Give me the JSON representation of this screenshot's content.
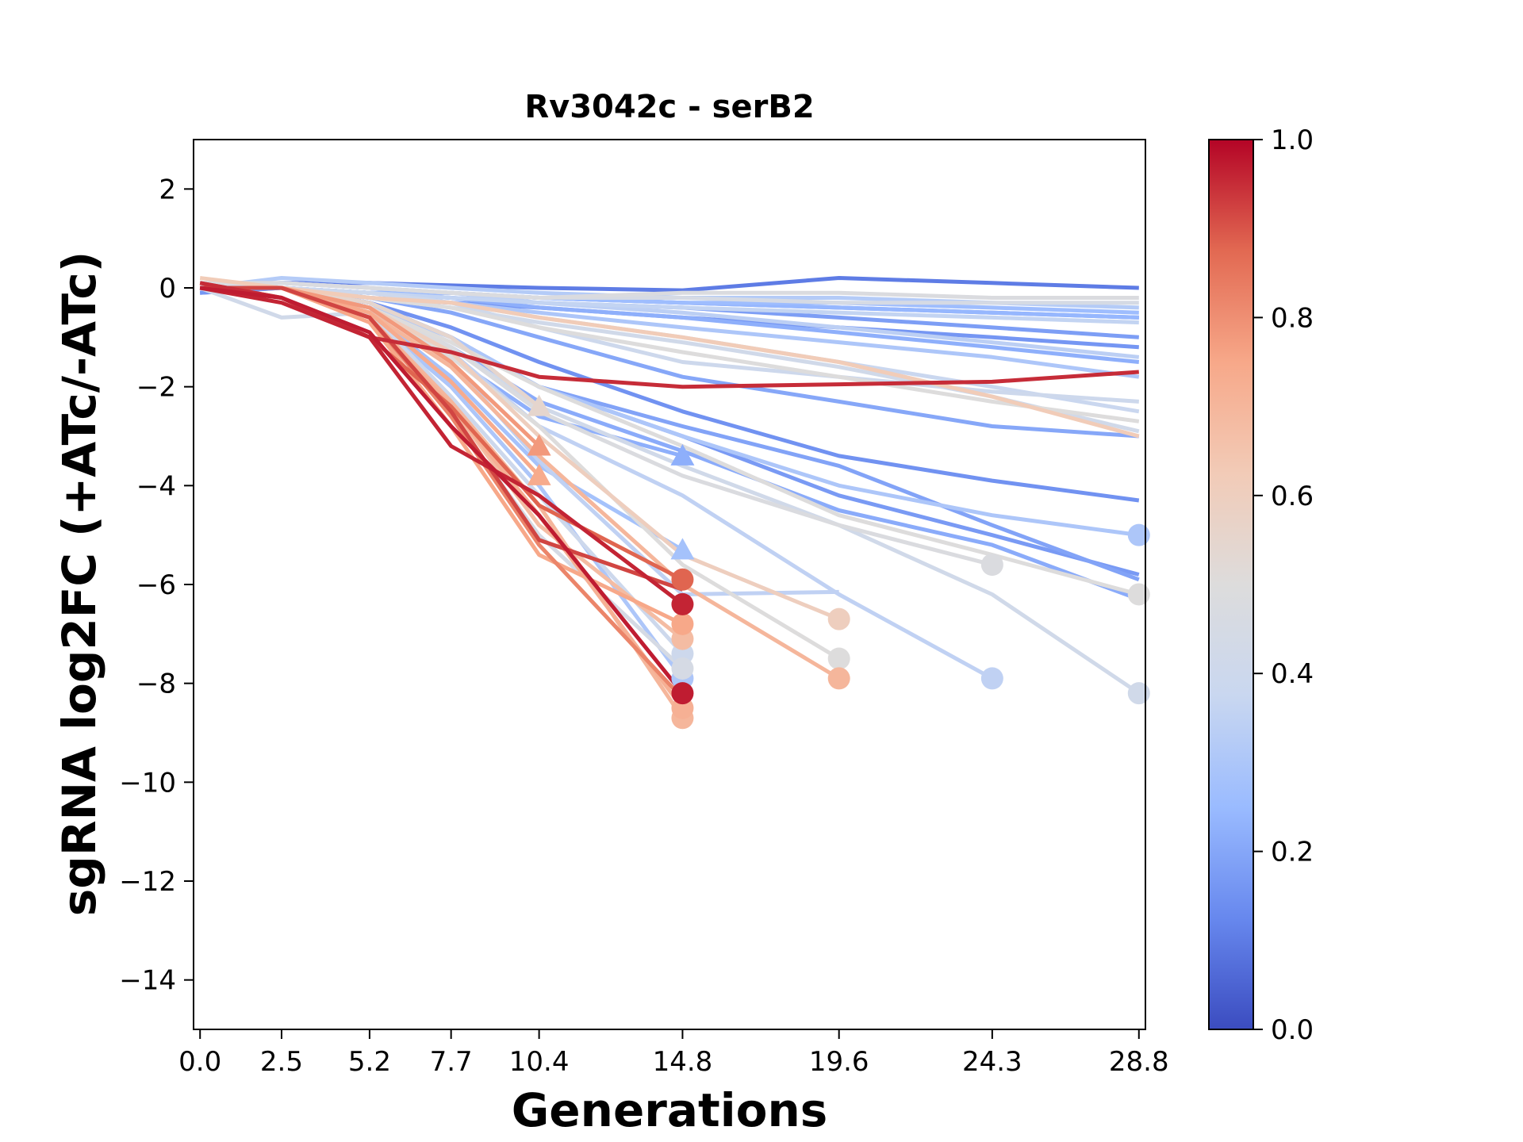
{
  "chart_data": {
    "type": "line",
    "title": "Rv3042c - serB2",
    "xlabel": "Generations",
    "ylabel": "sgRNA log2FC (+ATc/-ATc)",
    "x_ticks": [
      0.0,
      2.5,
      5.2,
      7.7,
      10.4,
      14.8,
      19.6,
      24.3,
      28.8
    ],
    "x_tick_labels": [
      "0.0",
      "2.5",
      "5.2",
      "7.7",
      "10.4",
      "14.8",
      "19.6",
      "24.3",
      "28.8"
    ],
    "y_ticks": [
      2,
      0,
      -2,
      -4,
      -6,
      -8,
      -10,
      -12,
      -14
    ],
    "y_tick_labels": [
      "2",
      "0",
      "−2",
      "−4",
      "−6",
      "−8",
      "−10",
      "−12",
      "−14"
    ],
    "xlim": [
      -0.2,
      29.0
    ],
    "ylim": [
      -15,
      3
    ],
    "grid": false,
    "colorbar": {
      "range": [
        0.0,
        1.0
      ],
      "ticks": [
        0.0,
        0.2,
        0.4,
        0.6,
        0.8,
        1.0
      ],
      "tick_labels": [
        "0.0",
        "0.2",
        "0.4",
        "0.6",
        "0.8",
        "1.0"
      ],
      "colormap": "coolwarm",
      "stops": [
        "#3b4cc0",
        "#6788ee",
        "#9abbff",
        "#c9d7f0",
        "#dddcdc",
        "#f2cbb7",
        "#f7a889",
        "#e26952",
        "#b40426"
      ]
    },
    "series": [
      {
        "x": [
          0.0,
          2.5,
          5.2,
          7.7,
          10.4,
          14.8,
          19.6,
          24.3,
          28.8
        ],
        "y": [
          0.0,
          0.1,
          0.1,
          0.05,
          0.0,
          -0.05,
          0.2,
          0.1,
          0.0
        ],
        "c": 0.1,
        "end": "none"
      },
      {
        "x": [
          0.0,
          2.5,
          5.2,
          7.7,
          10.4,
          14.8,
          19.6,
          24.3,
          28.8
        ],
        "y": [
          -0.1,
          0.0,
          -0.1,
          -0.1,
          -0.2,
          -0.3,
          -0.4,
          -0.5,
          -0.6
        ],
        "c": 0.14,
        "end": "none"
      },
      {
        "x": [
          0.0,
          2.5,
          5.2,
          7.7,
          10.4,
          14.8,
          19.6,
          24.3,
          28.8
        ],
        "y": [
          0.0,
          0.0,
          -0.1,
          -0.2,
          -0.3,
          -0.4,
          -0.6,
          -0.8,
          -1.0
        ],
        "c": 0.18,
        "end": "none"
      },
      {
        "x": [
          0.0,
          2.5,
          5.2,
          7.7,
          10.4,
          14.8,
          19.6,
          24.3,
          28.8
        ],
        "y": [
          -0.1,
          0.0,
          -0.2,
          -0.3,
          -0.4,
          -0.6,
          -0.8,
          -1.0,
          -1.2
        ],
        "c": 0.16,
        "end": "none"
      },
      {
        "x": [
          0.0,
          2.5,
          5.2,
          7.7,
          10.4,
          14.8,
          19.6,
          24.3,
          28.8
        ],
        "y": [
          0.0,
          0.1,
          0.0,
          -0.1,
          -0.2,
          -0.3,
          -0.3,
          -0.4,
          -0.5
        ],
        "c": 0.26,
        "end": "none"
      },
      {
        "x": [
          0.0,
          2.5,
          5.2,
          7.7,
          10.4,
          14.8,
          19.6,
          24.3,
          28.8
        ],
        "y": [
          0.0,
          0.2,
          0.1,
          0.0,
          -0.1,
          -0.2,
          -0.2,
          -0.3,
          -0.4
        ],
        "c": 0.32,
        "end": "none"
      },
      {
        "x": [
          0.0,
          2.5,
          5.2,
          7.7,
          10.4,
          14.8,
          19.6,
          24.3,
          28.8
        ],
        "y": [
          0.0,
          0.0,
          -0.1,
          -0.2,
          -0.4,
          -0.6,
          -0.9,
          -1.2,
          -1.5
        ],
        "c": 0.22,
        "end": "none"
      },
      {
        "x": [
          0.0,
          2.5,
          5.2,
          7.7,
          10.4,
          14.8,
          19.6,
          24.3,
          28.8
        ],
        "y": [
          0.0,
          0.0,
          -0.1,
          -0.2,
          -0.3,
          -0.4,
          -0.5,
          -0.6,
          -0.7
        ],
        "c": 0.36,
        "end": "none"
      },
      {
        "x": [
          0.0,
          2.5,
          5.2,
          7.7,
          10.4,
          14.8,
          19.6,
          24.3,
          28.8
        ],
        "y": [
          0.1,
          0.0,
          -0.1,
          -0.3,
          -0.5,
          -0.8,
          -1.1,
          -1.4,
          -1.8
        ],
        "c": 0.3,
        "end": "none"
      },
      {
        "x": [
          0.0,
          2.5,
          5.2,
          7.7,
          10.4,
          14.8,
          19.6,
          24.3,
          28.8
        ],
        "y": [
          0.0,
          0.1,
          0.0,
          -0.1,
          -0.3,
          -0.5,
          -0.8,
          -1.1,
          -1.4
        ],
        "c": 0.34,
        "end": "none"
      },
      {
        "x": [
          0.0,
          2.5,
          5.2,
          7.7,
          10.4,
          14.8,
          19.6,
          24.3,
          28.8
        ],
        "y": [
          0.0,
          0.0,
          -0.1,
          -0.1,
          -0.2,
          -0.3,
          -0.4,
          -0.5,
          -0.6
        ],
        "c": 0.24,
        "end": "none"
      },
      {
        "x": [
          0.0,
          2.5,
          5.2,
          7.7,
          10.4,
          14.8,
          19.6,
          24.3,
          28.8
        ],
        "y": [
          0.0,
          0.1,
          0.0,
          -0.1,
          -0.2,
          -0.2,
          -0.3,
          -0.3,
          -0.3
        ],
        "c": 0.45,
        "end": "none"
      },
      {
        "x": [
          0.0,
          2.5,
          5.2,
          7.7,
          10.4,
          14.8,
          19.6,
          24.3,
          28.8
        ],
        "y": [
          0.1,
          0.1,
          0.0,
          -0.1,
          -0.2,
          -0.1,
          -0.1,
          -0.2,
          -0.2
        ],
        "c": 0.48,
        "end": "none"
      },
      {
        "x": [
          0.0,
          2.5,
          5.2,
          7.7,
          10.4,
          14.8,
          19.6,
          24.3,
          28.8
        ],
        "y": [
          0.0,
          0.0,
          -0.1,
          -0.3,
          -0.6,
          -1.0,
          -1.5,
          -2.0,
          -2.5
        ],
        "c": 0.38,
        "end": "none"
      },
      {
        "x": [
          0.0,
          2.5,
          5.2,
          7.7,
          10.4,
          14.8,
          19.6,
          24.3,
          28.8
        ],
        "y": [
          0.0,
          0.0,
          -0.2,
          -0.4,
          -0.7,
          -1.1,
          -1.6,
          -2.2,
          -2.9
        ],
        "c": 0.42,
        "end": "none"
      },
      {
        "x": [
          0.0,
          2.5,
          5.2,
          7.7,
          10.4,
          14.8,
          19.6,
          24.3,
          28.8
        ],
        "y": [
          0.0,
          0.0,
          -0.2,
          -0.4,
          -0.8,
          -1.3,
          -1.8,
          -2.3,
          -2.7
        ],
        "c": 0.5,
        "end": "none"
      },
      {
        "x": [
          0.0,
          2.5,
          5.2,
          7.7,
          10.4,
          14.8,
          19.6,
          24.3,
          28.8
        ],
        "y": [
          0.2,
          0.0,
          -0.2,
          -0.3,
          -0.6,
          -1.0,
          -1.5,
          -2.2,
          -3.0
        ],
        "c": 0.62,
        "end": "none"
      },
      {
        "x": [
          0.0,
          2.5,
          5.2,
          7.7,
          10.4,
          14.8,
          19.6,
          24.3,
          28.8
        ],
        "y": [
          0.0,
          0.0,
          -0.1,
          -0.3,
          -0.8,
          -1.5,
          -1.8,
          -2.1,
          -2.3
        ],
        "c": 0.4,
        "end": "none"
      },
      {
        "x": [
          0.0,
          2.5,
          5.2,
          7.7,
          10.4,
          14.8,
          19.6,
          24.3,
          28.8
        ],
        "y": [
          0.0,
          0.0,
          -0.2,
          -0.5,
          -1.0,
          -1.8,
          -2.3,
          -2.8,
          -3.0
        ],
        "c": 0.2,
        "end": "none"
      },
      {
        "x": [
          0.0,
          2.5,
          5.2,
          7.7,
          10.4,
          14.8,
          19.6,
          24.3,
          28.8
        ],
        "y": [
          0.0,
          0.0,
          -0.3,
          -0.8,
          -1.5,
          -2.5,
          -3.4,
          -3.9,
          -4.3
        ],
        "c": 0.15,
        "end": "none"
      },
      {
        "x": [
          0.0,
          2.5,
          5.2,
          7.7,
          10.4,
          14.8,
          19.6,
          24.3,
          28.8
        ],
        "y": [
          0.0,
          0.0,
          -0.3,
          -1.0,
          -2.0,
          -3.0,
          -4.2,
          -5.0,
          -5.8
        ],
        "c": 0.17,
        "end": "none"
      },
      {
        "x": [
          0.0,
          2.5,
          5.2,
          7.7,
          10.4,
          14.8,
          19.6,
          24.3,
          28.8
        ],
        "y": [
          0.0,
          0.0,
          -0.3,
          -1.0,
          -2.0,
          -2.8,
          -3.6,
          -4.8,
          -5.9
        ],
        "c": 0.19,
        "end": "none"
      },
      {
        "x": [
          0.0,
          2.5,
          5.2,
          7.7,
          10.4,
          14.8,
          19.6,
          24.3,
          28.8
        ],
        "y": [
          0.0,
          0.0,
          -0.4,
          -1.2,
          -2.3,
          -3.3,
          -4.5,
          -5.2,
          -6.3
        ],
        "c": 0.21,
        "end": "none"
      },
      {
        "x": [
          0.0,
          2.5,
          5.2,
          7.7,
          10.4,
          14.8,
          19.6,
          24.3,
          28.8
        ],
        "y": [
          0.0,
          0.0,
          -0.4,
          -1.0,
          -2.0,
          -3.0,
          -4.0,
          -4.6,
          -5.0
        ],
        "c": 0.3,
        "end": "circle"
      },
      {
        "x": [
          0.0,
          2.5,
          5.2,
          7.7,
          10.4,
          14.8,
          19.6,
          24.3,
          28.8
        ],
        "y": [
          0.0,
          0.0,
          -0.4,
          -1.1,
          -2.0,
          -3.2,
          -4.6,
          -5.4,
          -6.2
        ],
        "c": 0.5,
        "end": "circle"
      },
      {
        "x": [
          0.0,
          2.5,
          5.2,
          7.7,
          10.4,
          14.8,
          19.6,
          24.3,
          28.8
        ],
        "y": [
          0.0,
          -0.6,
          -0.5,
          -1.2,
          -2.4,
          -3.6,
          -4.8,
          -6.2,
          -8.2
        ],
        "c": 0.42,
        "end": "circle"
      },
      {
        "x": [
          0.0,
          2.5,
          5.2,
          7.7,
          10.4,
          14.8,
          19.6,
          24.3
        ],
        "y": [
          0.0,
          0.0,
          -0.4,
          -1.2,
          -2.5,
          -3.8,
          -4.8,
          -5.6
        ],
        "c": 0.48,
        "end": "circle"
      },
      {
        "x": [
          0.0,
          2.5,
          5.2,
          7.7,
          10.4,
          14.8,
          19.6,
          24.3
        ],
        "y": [
          0.0,
          0.0,
          -0.4,
          -1.3,
          -2.8,
          -4.2,
          -6.2,
          -7.9
        ],
        "c": 0.35,
        "end": "circle"
      },
      {
        "x": [
          0.0,
          2.5,
          5.2,
          7.7,
          10.4,
          14.8,
          19.6,
          24.3,
          28.8
        ],
        "y": [
          0.1,
          -0.2,
          -1.0,
          -1.3,
          -1.8,
          -2.0,
          -1.95,
          -1.9,
          -1.7
        ],
        "c": 0.95,
        "end": "none"
      },
      {
        "x": [
          0.0,
          2.5,
          5.2,
          7.7,
          10.4,
          14.8,
          19.6
        ],
        "y": [
          0.0,
          0.0,
          -0.4,
          -1.3,
          -3.0,
          -5.4,
          -6.7
        ],
        "c": 0.6,
        "end": "circle"
      },
      {
        "x": [
          0.0,
          2.5,
          5.2,
          7.7,
          10.4,
          14.8,
          19.6
        ],
        "y": [
          0.0,
          0.0,
          -0.4,
          -1.4,
          -2.8,
          -5.6,
          -7.5
        ],
        "c": 0.5,
        "end": "circle"
      },
      {
        "x": [
          0.0,
          2.5,
          5.2,
          7.7,
          10.4,
          14.8,
          19.6
        ],
        "y": [
          0.0,
          0.0,
          -0.5,
          -1.6,
          -3.4,
          -6.0,
          -7.9
        ],
        "c": 0.7,
        "end": "circle"
      },
      {
        "x": [
          0.0,
          2.5,
          5.2,
          7.7,
          10.4,
          14.8,
          19.6
        ],
        "y": [
          0.0,
          0.0,
          -0.4,
          -1.5,
          -3.5,
          -6.2,
          -6.15
        ],
        "c": 0.35,
        "end": "none"
      },
      {
        "x": [
          0.0,
          2.5,
          5.2,
          7.7,
          10.4
        ],
        "y": [
          0.0,
          0.0,
          -0.3,
          -1.0,
          -2.4
        ],
        "c": 0.55,
        "end": "triangle"
      },
      {
        "x": [
          0.0,
          2.5,
          5.2,
          7.7,
          10.4
        ],
        "y": [
          0.0,
          0.0,
          -0.4,
          -1.5,
          -3.2
        ],
        "c": 0.78,
        "end": "triangle"
      },
      {
        "x": [
          0.0,
          2.5,
          5.2,
          7.7,
          10.4
        ],
        "y": [
          0.0,
          0.0,
          -0.5,
          -1.9,
          -3.8
        ],
        "c": 0.74,
        "end": "triangle"
      },
      {
        "x": [
          0.0,
          2.5,
          5.2,
          7.7,
          10.4,
          14.8
        ],
        "y": [
          0.0,
          0.0,
          -0.4,
          -1.4,
          -2.6,
          -3.4
        ],
        "c": 0.22,
        "end": "triangle"
      },
      {
        "x": [
          0.0,
          2.5,
          5.2,
          7.7,
          10.4,
          14.8
        ],
        "y": [
          0.0,
          0.0,
          -0.5,
          -1.8,
          -3.6,
          -5.3
        ],
        "c": 0.28,
        "end": "triangle"
      },
      {
        "x": [
          0.0,
          2.5,
          5.2,
          7.7,
          10.4,
          14.8
        ],
        "y": [
          0.1,
          -0.2,
          -1.0,
          -2.4,
          -4.4,
          -5.9
        ],
        "c": 0.88,
        "end": "circle"
      },
      {
        "x": [
          0.0,
          2.5,
          5.2,
          7.7,
          10.4,
          14.8
        ],
        "y": [
          0.0,
          -0.3,
          -1.0,
          -3.2,
          -4.2,
          -6.4
        ],
        "c": 0.96,
        "end": "circle"
      },
      {
        "x": [
          0.0,
          2.5,
          5.2,
          7.7,
          10.4,
          14.8
        ],
        "y": [
          0.0,
          0.0,
          -0.6,
          -2.5,
          -5.1,
          -6.1
        ],
        "c": 0.92,
        "end": "none"
      },
      {
        "x": [
          0.0,
          2.5,
          5.2,
          7.7,
          10.4,
          14.8
        ],
        "y": [
          0.0,
          -0.2,
          -0.9,
          -2.8,
          -4.6,
          -8.2
        ],
        "c": 0.97,
        "end": "circle"
      },
      {
        "x": [
          0.0,
          2.5,
          5.2,
          7.7,
          10.4,
          14.8
        ],
        "y": [
          0.0,
          0.0,
          -0.7,
          -2.8,
          -5.4,
          -6.8
        ],
        "c": 0.75,
        "end": "circle"
      },
      {
        "x": [
          0.0,
          2.5,
          5.2,
          7.7,
          10.4,
          14.8
        ],
        "y": [
          0.0,
          0.0,
          -0.6,
          -2.4,
          -4.8,
          -7.1
        ],
        "c": 0.68,
        "end": "circle"
      },
      {
        "x": [
          0.0,
          2.5,
          5.2,
          7.7,
          10.4,
          14.8
        ],
        "y": [
          0.0,
          0.0,
          -0.5,
          -2.2,
          -4.2,
          -7.4
        ],
        "c": 0.4,
        "end": "circle"
      },
      {
        "x": [
          0.0,
          2.5,
          5.2,
          7.7,
          10.4,
          14.8
        ],
        "y": [
          0.0,
          0.0,
          -0.6,
          -2.6,
          -5.0,
          -7.7
        ],
        "c": 0.45,
        "end": "circle"
      },
      {
        "x": [
          0.0,
          2.5,
          5.2,
          7.7,
          10.4,
          14.8
        ],
        "y": [
          0.0,
          0.0,
          -0.6,
          -2.0,
          -4.0,
          -7.9
        ],
        "c": 0.3,
        "end": "circle"
      },
      {
        "x": [
          0.0,
          2.5,
          5.2,
          7.7,
          10.4,
          14.8
        ],
        "y": [
          0.0,
          0.0,
          -0.6,
          -2.6,
          -5.2,
          -8.3
        ],
        "c": 0.82,
        "end": "none"
      },
      {
        "x": [
          0.0,
          2.5,
          5.2,
          7.7,
          10.4,
          14.8
        ],
        "y": [
          0.0,
          0.0,
          -0.6,
          -2.4,
          -4.6,
          -8.5
        ],
        "c": 0.72,
        "end": "circle"
      },
      {
        "x": [
          0.0,
          2.5,
          5.2,
          7.7,
          10.4,
          14.8
        ],
        "y": [
          0.0,
          0.0,
          -0.6,
          -2.3,
          -4.4,
          -8.7
        ],
        "c": 0.7,
        "end": "circle"
      }
    ]
  }
}
